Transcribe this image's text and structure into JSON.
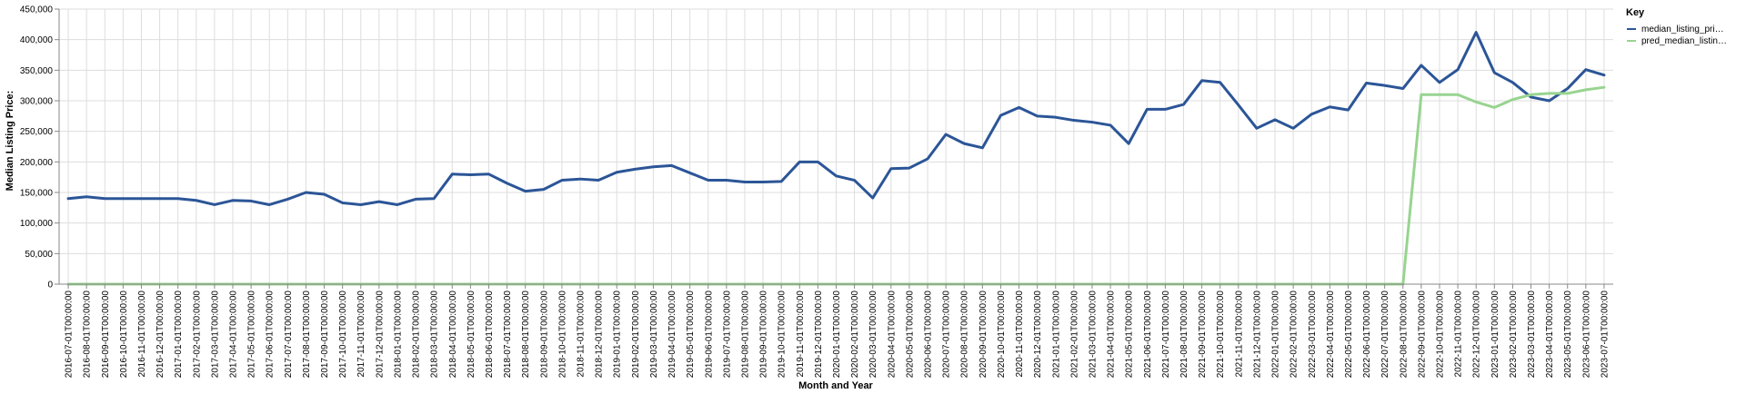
{
  "chart_data": {
    "type": "line",
    "ylabel": "Median Listing Price:",
    "xlabel": "Month and Year",
    "ylim": [
      0,
      450000
    ],
    "y_ticks": [
      0,
      50000,
      100000,
      150000,
      200000,
      250000,
      300000,
      350000,
      400000,
      450000
    ],
    "y_tick_labels": [
      "0",
      "50,000",
      "100,000",
      "150,000",
      "200,000",
      "250,000",
      "300,000",
      "350,000",
      "400,000",
      "450,000"
    ],
    "grid": true,
    "legend": {
      "title": "Key",
      "position": "right",
      "entries": [
        "median_listing_pri…",
        "pred_median_listin…"
      ]
    },
    "categories": [
      "2016-07-01T00:00:00",
      "2016-08-01T00:00:00",
      "2016-09-01T00:00:00",
      "2016-10-01T00:00:00",
      "2016-11-01T00:00:00",
      "2016-12-01T00:00:00",
      "2017-01-01T00:00:00",
      "2017-02-01T00:00:00",
      "2017-03-01T00:00:00",
      "2017-04-01T00:00:00",
      "2017-05-01T00:00:00",
      "2017-06-01T00:00:00",
      "2017-07-01T00:00:00",
      "2017-08-01T00:00:00",
      "2017-09-01T00:00:00",
      "2017-10-01T00:00:00",
      "2017-11-01T00:00:00",
      "2017-12-01T00:00:00",
      "2018-01-01T00:00:00",
      "2018-02-01T00:00:00",
      "2018-03-01T00:00:00",
      "2018-04-01T00:00:00",
      "2018-05-01T00:00:00",
      "2018-06-01T00:00:00",
      "2018-07-01T00:00:00",
      "2018-08-01T00:00:00",
      "2018-09-01T00:00:00",
      "2018-10-01T00:00:00",
      "2018-11-01T00:00:00",
      "2018-12-01T00:00:00",
      "2019-01-01T00:00:00",
      "2019-02-01T00:00:00",
      "2019-03-01T00:00:00",
      "2019-04-01T00:00:00",
      "2019-05-01T00:00:00",
      "2019-06-01T00:00:00",
      "2019-07-01T00:00:00",
      "2019-08-01T00:00:00",
      "2019-09-01T00:00:00",
      "2019-10-01T00:00:00",
      "2019-11-01T00:00:00",
      "2019-12-01T00:00:00",
      "2020-01-01T00:00:00",
      "2020-02-01T00:00:00",
      "2020-03-01T00:00:00",
      "2020-04-01T00:00:00",
      "2020-05-01T00:00:00",
      "2020-06-01T00:00:00",
      "2020-07-01T00:00:00",
      "2020-08-01T00:00:00",
      "2020-09-01T00:00:00",
      "2020-10-01T00:00:00",
      "2020-11-01T00:00:00",
      "2020-12-01T00:00:00",
      "2021-01-01T00:00:00",
      "2021-02-01T00:00:00",
      "2021-03-01T00:00:00",
      "2021-04-01T00:00:00",
      "2021-05-01T00:00:00",
      "2021-06-01T00:00:00",
      "2021-07-01T00:00:00",
      "2021-08-01T00:00:00",
      "2021-09-01T00:00:00",
      "2021-10-01T00:00:00",
      "2021-11-01T00:00:00",
      "2021-12-01T00:00:00",
      "2022-01-01T00:00:00",
      "2022-02-01T00:00:00",
      "2022-03-01T00:00:00",
      "2022-04-01T00:00:00",
      "2022-05-01T00:00:00",
      "2022-06-01T00:00:00",
      "2022-07-01T00:00:00",
      "2022-08-01T00:00:00",
      "2022-09-01T00:00:00",
      "2022-10-01T00:00:00",
      "2022-11-01T00:00:00",
      "2022-12-01T00:00:00",
      "2023-01-01T00:00:00",
      "2023-02-01T00:00:00",
      "2023-03-01T00:00:00",
      "2023-04-01T00:00:00",
      "2023-05-01T00:00:00",
      "2023-06-01T00:00:00",
      "2023-07-01T00:00:00"
    ],
    "series": [
      {
        "name": "median_listing_pri…",
        "color": "#2b5597",
        "values": [
          140000,
          143000,
          140000,
          140000,
          140000,
          140000,
          140000,
          137000,
          130000,
          137000,
          136000,
          130000,
          139000,
          150000,
          147000,
          133000,
          130000,
          135000,
          130000,
          139000,
          140000,
          180000,
          179000,
          180000,
          165000,
          152000,
          155000,
          170000,
          172000,
          170000,
          183000,
          188000,
          192000,
          194000,
          182000,
          170000,
          170000,
          167000,
          167000,
          168000,
          200000,
          200000,
          177000,
          170000,
          141000,
          189000,
          190000,
          205000,
          245000,
          230000,
          223000,
          276000,
          289000,
          275000,
          273000,
          268000,
          265000,
          260000,
          230000,
          286000,
          286000,
          294000,
          333000,
          330000,
          293000,
          255000,
          269000,
          255000,
          278000,
          290000,
          285000,
          329000,
          325000,
          320000,
          358000,
          330000,
          351000,
          412000,
          346000,
          330000,
          306000,
          300000,
          320000,
          351000,
          342000
        ]
      },
      {
        "name": "pred_median_listin…",
        "color": "#98d490",
        "values": [
          0,
          0,
          0,
          0,
          0,
          0,
          0,
          0,
          0,
          0,
          0,
          0,
          0,
          0,
          0,
          0,
          0,
          0,
          0,
          0,
          0,
          0,
          0,
          0,
          0,
          0,
          0,
          0,
          0,
          0,
          0,
          0,
          0,
          0,
          0,
          0,
          0,
          0,
          0,
          0,
          0,
          0,
          0,
          0,
          0,
          0,
          0,
          0,
          0,
          0,
          0,
          0,
          0,
          0,
          0,
          0,
          0,
          0,
          0,
          0,
          0,
          0,
          0,
          0,
          0,
          0,
          0,
          0,
          0,
          0,
          0,
          0,
          0,
          0,
          310000,
          310000,
          310000,
          298000,
          289000,
          302000,
          310000,
          312000,
          312000,
          318000,
          322000
        ]
      }
    ]
  }
}
